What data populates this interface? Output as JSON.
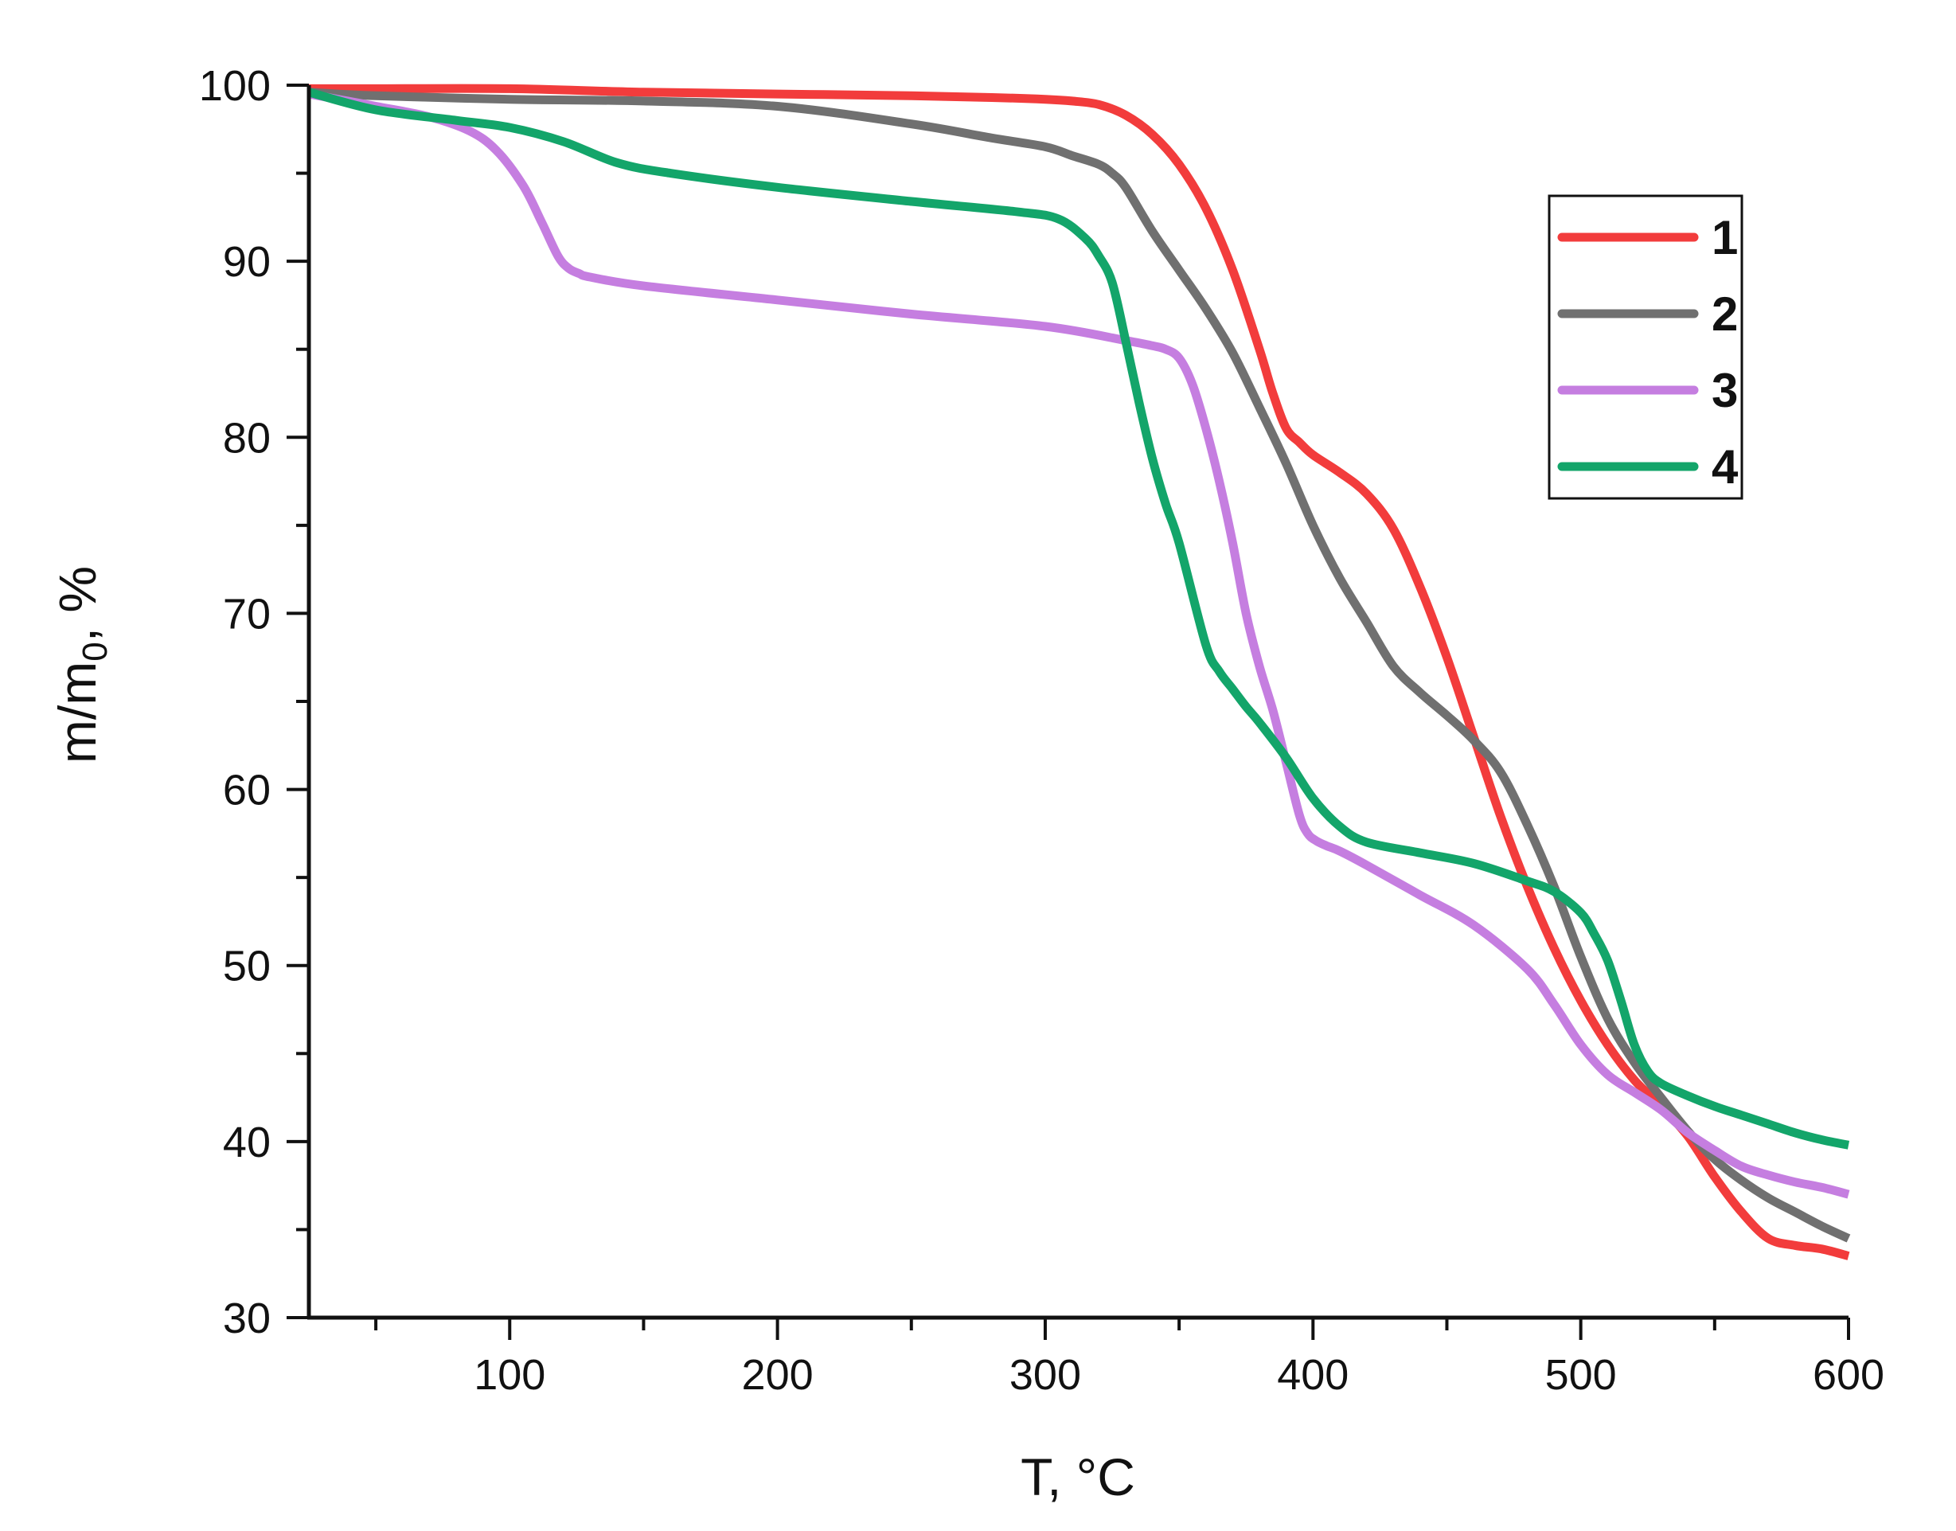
{
  "chart_data": {
    "type": "line",
    "title": "",
    "xlabel": "T, °C",
    "ylabel_main": "m/m",
    "ylabel_sub": "0",
    "ylabel_tail": ", %",
    "xlim": [
      25,
      600
    ],
    "ylim": [
      30,
      100
    ],
    "xticks": [
      100,
      200,
      300,
      400,
      500,
      600
    ],
    "xticks_labels": [
      "100",
      "200",
      "300",
      "400",
      "500",
      "600"
    ],
    "yticks": [
      30,
      40,
      50,
      60,
      70,
      80,
      90,
      100
    ],
    "yticks_labels": [
      "30",
      "40",
      "50",
      "60",
      "70",
      "80",
      "90",
      "100"
    ],
    "legend_position": "top-right",
    "series": [
      {
        "name": "1",
        "color": "#f23c3c",
        "x": [
          25,
          50,
          100,
          150,
          200,
          250,
          280,
          300,
          310,
          320,
          330,
          340,
          350,
          360,
          370,
          380,
          385,
          390,
          395,
          400,
          410,
          420,
          430,
          440,
          450,
          460,
          470,
          480,
          490,
          500,
          510,
          520,
          530,
          540,
          550,
          560,
          570,
          580,
          590,
          600
        ],
        "y": [
          99.8,
          99.8,
          99.8,
          99.6,
          99.5,
          99.4,
          99.3,
          99.2,
          99.1,
          98.9,
          98.3,
          97.2,
          95.5,
          93.0,
          89.5,
          85.0,
          82.5,
          80.5,
          79.7,
          79.0,
          78.0,
          76.8,
          74.8,
          71.5,
          67.5,
          63.0,
          58.5,
          54.5,
          51.0,
          48.0,
          45.5,
          43.5,
          42.0,
          40.3,
          38.0,
          36.0,
          34.5,
          34.1,
          33.9,
          33.5
        ]
      },
      {
        "name": "2",
        "color": "#707070",
        "x": [
          25,
          50,
          100,
          150,
          200,
          250,
          280,
          300,
          310,
          320,
          325,
          330,
          340,
          350,
          360,
          370,
          380,
          390,
          400,
          410,
          420,
          430,
          440,
          450,
          460,
          470,
          480,
          490,
          500,
          510,
          520,
          530,
          540,
          550,
          560,
          570,
          580,
          590,
          600
        ],
        "y": [
          99.6,
          99.4,
          99.2,
          99.1,
          98.8,
          97.8,
          97.0,
          96.5,
          96.0,
          95.5,
          95.0,
          94.2,
          91.7,
          89.5,
          87.3,
          84.8,
          81.7,
          78.5,
          75.0,
          72.0,
          69.5,
          67.0,
          65.5,
          64.2,
          62.8,
          61.0,
          58.0,
          54.5,
          50.5,
          47.0,
          44.5,
          42.5,
          40.6,
          39.0,
          37.8,
          36.8,
          36.0,
          35.2,
          34.5
        ]
      },
      {
        "name": "3",
        "color": "#c57ee0",
        "x": [
          25,
          50,
          70,
          85,
          95,
          105,
          112,
          118,
          122,
          126,
          130,
          150,
          200,
          250,
          300,
          330,
          340,
          345,
          350,
          355,
          360,
          365,
          370,
          375,
          380,
          385,
          390,
          395,
          398,
          401,
          405,
          410,
          420,
          440,
          460,
          480,
          490,
          500,
          510,
          520,
          530,
          540,
          550,
          560,
          570,
          580,
          590,
          600
        ],
        "y": [
          99.5,
          98.8,
          98.2,
          97.4,
          96.3,
          94.3,
          92.2,
          90.3,
          89.6,
          89.3,
          89.1,
          88.6,
          87.8,
          87.0,
          86.3,
          85.5,
          85.2,
          85.0,
          84.5,
          83.0,
          80.5,
          77.5,
          74.0,
          70.0,
          67.0,
          64.5,
          61.5,
          58.5,
          57.5,
          57.1,
          56.8,
          56.5,
          55.7,
          54.0,
          52.3,
          49.8,
          47.8,
          45.5,
          43.8,
          42.8,
          41.8,
          40.5,
          39.5,
          38.6,
          38.1,
          37.7,
          37.4,
          37.0
        ]
      },
      {
        "name": "4",
        "color": "#13a56a",
        "x": [
          25,
          50,
          80,
          100,
          120,
          140,
          160,
          200,
          250,
          290,
          305,
          315,
          320,
          325,
          330,
          335,
          340,
          345,
          350,
          360,
          365,
          370,
          375,
          380,
          390,
          400,
          410,
          420,
          440,
          460,
          480,
          490,
          500,
          505,
          510,
          515,
          520,
          525,
          530,
          540,
          550,
          560,
          570,
          580,
          590,
          600
        ],
        "y": [
          99.6,
          98.6,
          98.0,
          97.6,
          96.8,
          95.6,
          95.0,
          94.2,
          93.4,
          92.8,
          92.4,
          91.3,
          90.3,
          88.8,
          85.5,
          82.0,
          78.8,
          76.2,
          74.0,
          68.2,
          66.7,
          65.7,
          64.7,
          63.8,
          61.8,
          59.5,
          57.9,
          57.0,
          56.4,
          55.8,
          54.8,
          54.2,
          53.0,
          51.8,
          50.3,
          48.0,
          45.5,
          44.0,
          43.3,
          42.6,
          42.0,
          41.5,
          41.0,
          40.5,
          40.1,
          39.8
        ]
      }
    ]
  }
}
